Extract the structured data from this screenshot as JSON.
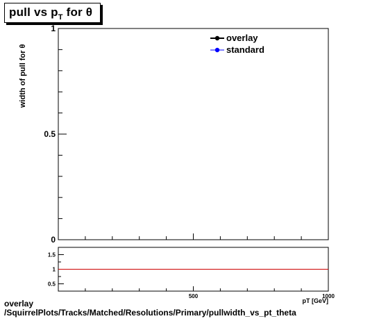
{
  "title": {
    "pre": "pull vs p",
    "sub": "T",
    "post": " for  θ"
  },
  "footer": {
    "line1": "overlay",
    "line2": "/SquirrelPlots/Tracks/Matched/Resolutions/Primary/pullwidth_vs_pt_theta"
  },
  "chart_data": [
    {
      "type": "line",
      "title": "pull vs pT for θ",
      "ylabel": "width of pull for  θ",
      "xlim": [
        0,
        1000
      ],
      "ylim": [
        0,
        1
      ],
      "y_tick_labels": [
        "0",
        "0.5",
        "1"
      ],
      "legend": {
        "placement": "top-right",
        "entries": [
          "overlay",
          "standard"
        ]
      },
      "series": [
        {
          "name": "overlay",
          "color": "#000000",
          "x": [],
          "y": []
        },
        {
          "name": "standard",
          "color": "#0000ff",
          "x": [],
          "y": []
        }
      ]
    },
    {
      "type": "line",
      "xlabel": "pT [GeV]",
      "xlim": [
        0,
        1000
      ],
      "ylim": [
        0.25,
        1.75
      ],
      "x_tick_labels": [
        "500",
        "1000"
      ],
      "y_tick_labels": [
        "0.5",
        "1",
        "1.5"
      ],
      "reference_line": {
        "y": 1,
        "color": "#cc0000"
      }
    }
  ]
}
